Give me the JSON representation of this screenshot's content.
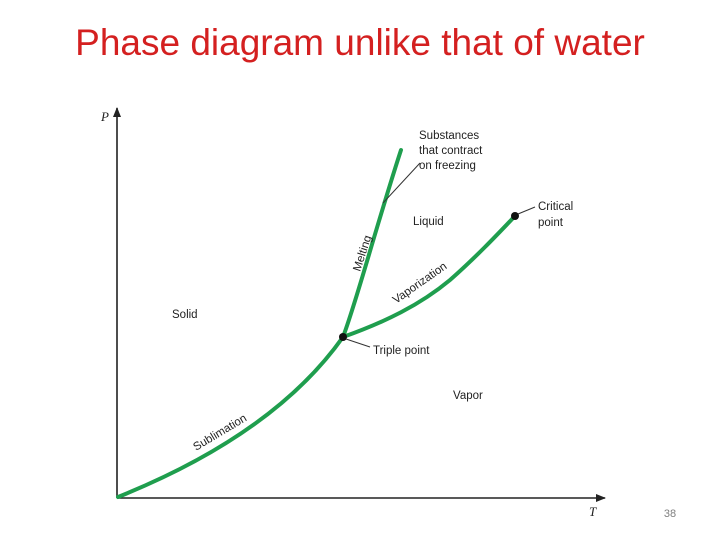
{
  "title": "Phase diagram unlike that of water",
  "slide_number": "38",
  "axes": {
    "y_label": "P",
    "x_label": "T"
  },
  "regions": {
    "solid": "Solid",
    "liquid": "Liquid",
    "vapor": "Vapor"
  },
  "curves": {
    "melting": "Melting",
    "vaporization": "Vaporization",
    "sublimation": "Sublimation"
  },
  "points": {
    "triple": "Triple point",
    "critical_line1": "Critical",
    "critical_line2": "point"
  },
  "note": {
    "line1": "Substances",
    "line2": "that contract",
    "line3": "on freezing"
  },
  "colors": {
    "title": "#d42020",
    "curve": "#1f9e4e",
    "axis": "#222222"
  }
}
